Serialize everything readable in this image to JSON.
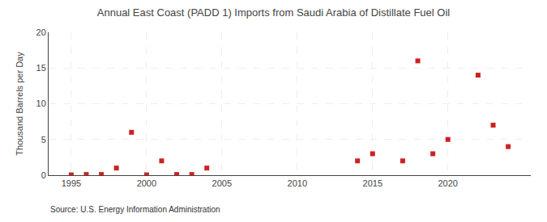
{
  "chart_data": {
    "type": "scatter",
    "title": "Annual East Coast (PADD 1) Imports from Saudi Arabia of Distillate Fuel Oil",
    "ylabel": "Thousand Barrels per Day",
    "annotations": [
      "Source: U.S. Energy Information Administration"
    ],
    "x": [
      1995,
      1996,
      1997,
      1998,
      1999,
      2000,
      2001,
      2002,
      2003,
      2004,
      2014,
      2015,
      2017,
      2018,
      2019,
      2020,
      2022,
      2023,
      2024
    ],
    "values": [
      0.05,
      0.1,
      0.1,
      1.0,
      6.0,
      0.05,
      2.0,
      0.1,
      0.1,
      1.0,
      2.0,
      3.0,
      2.0,
      16.0,
      3.0,
      5.0,
      14.0,
      7.0,
      4.0
    ],
    "color": "#cc2222",
    "marker": "square",
    "xlim": [
      1993.5,
      2025.5
    ],
    "xticks": [
      1995,
      2000,
      2005,
      2010,
      2015,
      2020
    ],
    "ylim": [
      0,
      20
    ],
    "yticks": [
      0,
      5,
      10,
      15,
      20
    ],
    "grid": true
  }
}
